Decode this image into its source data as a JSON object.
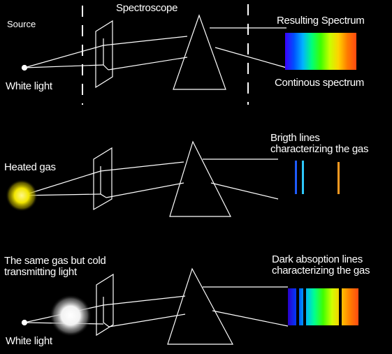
{
  "labels": {
    "source": "Source",
    "spectroscope": "Spectroscope",
    "resulting_spectrum": "Resulting Spectrum",
    "white_light_top": "White light",
    "continuous_spectrum": "Continous spectrum",
    "bright_lines_1": "Brigth lines",
    "bright_lines_2": "characterizing the gas",
    "heated_gas": "Heated gas",
    "cold_gas_1": "The same gas but cold",
    "cold_gas_2": "transmitting light",
    "dark_lines_1": "Dark absoption lines",
    "dark_lines_2": "characterizing the gas",
    "white_light_bottom": "White light"
  },
  "colors": {
    "background": "#000000",
    "line": "#ffffff",
    "heated_gas_glow": "#f2e600",
    "cold_gas_glow": "#ffffff",
    "bright_line_blue": "#1e5cff",
    "bright_line_cyan": "#2ec8ff",
    "bright_line_orange": "#ff9a20"
  },
  "spectra": {
    "continuous": [
      "#3a00ff",
      "#0050ff",
      "#00b4ff",
      "#00ff7a",
      "#3cff00",
      "#c8ff00",
      "#ffd200",
      "#ff7a00",
      "#ff4a10"
    ],
    "absorption": [
      "#2a00c8",
      "#003cff",
      "#00b4ff",
      "#00ff90",
      "#40ff00",
      "#d2ff00",
      "#ffc800",
      "#ff8000",
      "#ff4a10"
    ]
  }
}
